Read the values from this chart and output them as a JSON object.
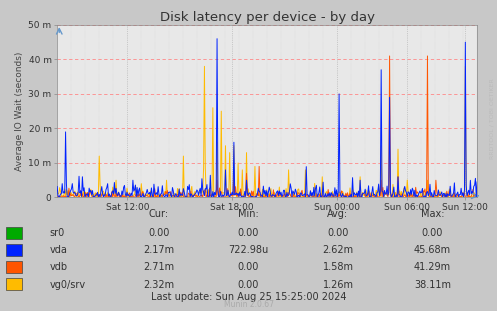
{
  "title": "Disk latency per device - by day",
  "ylabel": "Average IO Wait (seconds)",
  "background_color": "#c8c8c8",
  "plot_bg_color": "#e8e8e8",
  "ylim": [
    0,
    0.05
  ],
  "yticks": [
    0,
    0.01,
    0.02,
    0.03,
    0.04,
    0.05
  ],
  "ytick_labels": [
    "0",
    "10 m",
    "20 m",
    "30 m",
    "40 m",
    "50 m"
  ],
  "xtick_labels": [
    "Sat 12:00",
    "Sat 18:00",
    "Sun 00:00",
    "Sun 06:00",
    "Sun 12:00"
  ],
  "xtick_positions": [
    0.167,
    0.417,
    0.667,
    0.833,
    0.972
  ],
  "colors": {
    "sr0": "#00aa00",
    "vda": "#0022ff",
    "vdb": "#ff5500",
    "vg0_srv": "#ffbb00"
  },
  "legend": [
    {
      "label": "sr0",
      "color": "#00aa00",
      "cur": "0.00",
      "min": "0.00",
      "avg": "0.00",
      "max": "0.00"
    },
    {
      "label": "vda",
      "color": "#0022ff",
      "cur": "2.17m",
      "min": "722.98u",
      "avg": "2.62m",
      "max": "45.68m"
    },
    {
      "label": "vdb",
      "color": "#ff5500",
      "cur": "2.71m",
      "min": "0.00",
      "avg": "1.58m",
      "max": "41.29m"
    },
    {
      "label": "vg0/srv",
      "color": "#ffbb00",
      "cur": "2.32m",
      "min": "0.00",
      "avg": "1.26m",
      "max": "38.11m"
    }
  ],
  "last_update": "Last update: Sun Aug 25 15:25:00 2024",
  "munin_version": "Munin 2.0.67",
  "rrdtool_label": "RRDTOOL / TOBI OETIKER"
}
